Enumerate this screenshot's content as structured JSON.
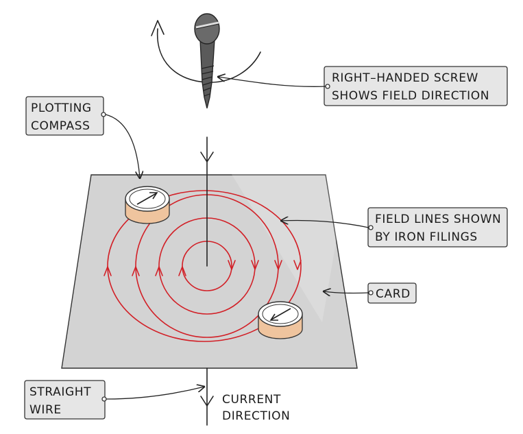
{
  "labels": {
    "screw": [
      "RIGHT–HANDED SCREW",
      "SHOWS FIELD DIRECTION"
    ],
    "compass": [
      "PLOTTING",
      "COMPASS"
    ],
    "field_lines": [
      "FIELD LINES SHOWN",
      "BY IRON FILINGS"
    ],
    "card": "CARD",
    "wire": [
      "STRAIGHT",
      "WIRE"
    ],
    "current": [
      "CURRENT",
      "DIRECTION"
    ]
  },
  "colors": {
    "card": "#d3d3d3",
    "field_lines": "#d21f26",
    "compass_side": "#efc49e",
    "label_box": "#e6e6e6",
    "screw": "#555555"
  },
  "icons": [
    "right-handed-screw-icon",
    "plotting-compass-icon"
  ]
}
